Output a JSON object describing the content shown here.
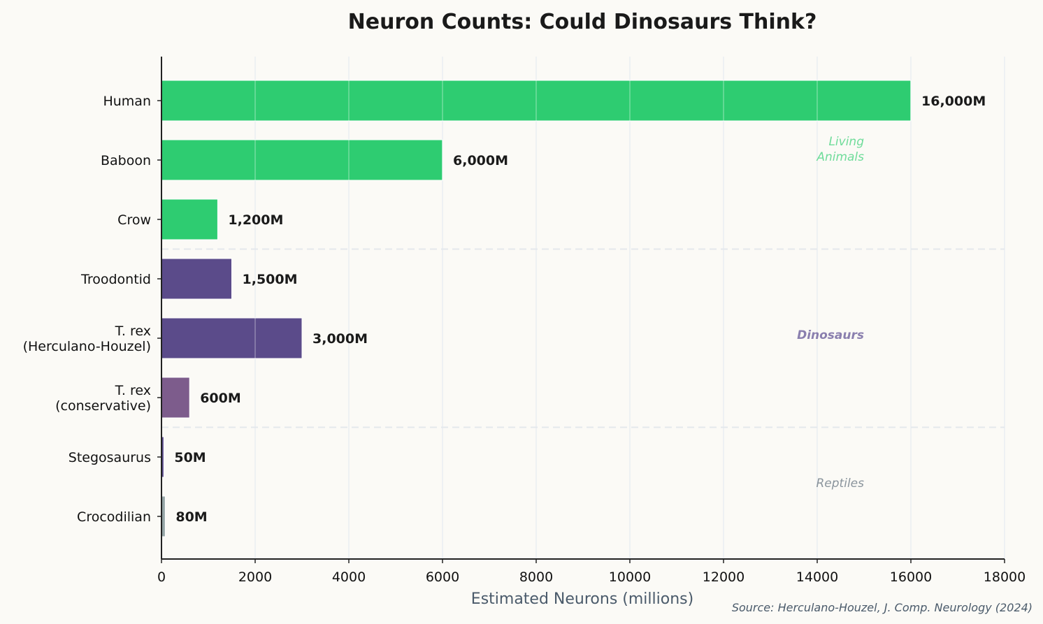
{
  "chart_data": {
    "type": "bar",
    "orientation": "horizontal",
    "title": "Neuron Counts: Could Dinosaurs Think?",
    "xlabel": "Estimated Neurons (millions)",
    "ylabel": "",
    "xlim": [
      0,
      18000
    ],
    "xticks": [
      0,
      2000,
      4000,
      6000,
      8000,
      10000,
      12000,
      14000,
      16000,
      18000
    ],
    "grid": "x",
    "categories": [
      "Human",
      "Baboon",
      "Crow",
      "Troodontid",
      "T. rex\n(Herculano-Houzel)",
      "T. rex\n(conservative)",
      "Stegosaurus",
      "Crocodilian"
    ],
    "values": [
      16000,
      6000,
      1200,
      1500,
      3000,
      600,
      50,
      80
    ],
    "value_labels": [
      "16,000M",
      "6,000M",
      "1,200M",
      "1,500M",
      "3,000M",
      "600M",
      "50M",
      "80M"
    ],
    "bar_colors": [
      "#2ecc71",
      "#2ecc71",
      "#2ecc71",
      "#5b4b8a",
      "#5b4b8a",
      "#7d5c8c",
      "#5b4b8a",
      "#95a5a6"
    ],
    "groups": [
      {
        "label": "Living\nAnimals",
        "color": "#6fdc9a",
        "weight": "normal"
      },
      {
        "label": "Dinosaurs",
        "color": "#8a7fae",
        "weight": "bold"
      },
      {
        "label": "Reptiles",
        "color": "#8a949c",
        "weight": "normal"
      }
    ],
    "separators_after_index": [
      2,
      5
    ],
    "annotations": [
      "Source: Herculano-Houzel, J. Comp. Neurology (2024)"
    ]
  }
}
